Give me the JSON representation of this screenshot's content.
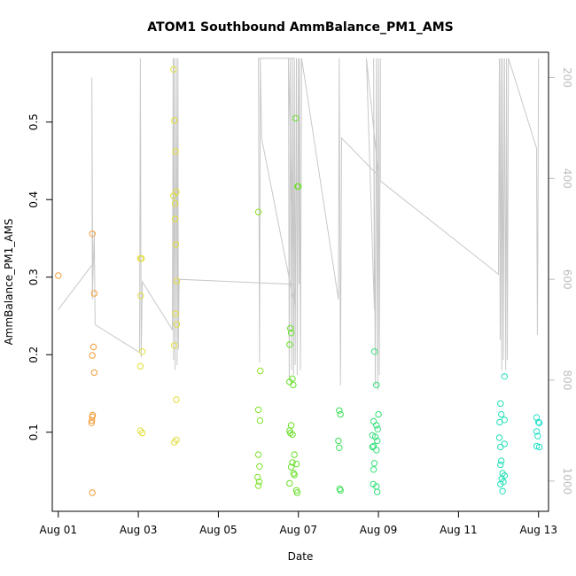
{
  "chart_data": {
    "type": "scatter",
    "title": "ATOM1 Southbound AmmBalance_PM1_AMS",
    "xlabel": "Date",
    "ylabel": "AmmBalance_PM1_AMS",
    "x_ticks": [
      "Aug 01",
      "Aug 03",
      "Aug 05",
      "Aug 07",
      "Aug 09",
      "Aug 11",
      "Aug 13"
    ],
    "x_tick_days": [
      1,
      3,
      5,
      7,
      9,
      11,
      13
    ],
    "xlim": [
      0.85,
      13.25
    ],
    "ylim": [
      -0.002,
      0.59
    ],
    "y_ticks": [
      0.1,
      0.2,
      0.3,
      0.4,
      0.5
    ],
    "y2_ticks": [
      200,
      400,
      600,
      800,
      1000
    ],
    "y2lim": [
      1060,
      150
    ],
    "y2_reversed": true,
    "colors": {
      "axis": "#000000",
      "secondary_axis": "#bdbdbd",
      "trace_line": "#c8c8c8"
    },
    "points": [
      {
        "x": 1.0,
        "y": 0.302,
        "c": "#f39c38"
      },
      {
        "x": 1.85,
        "y": 0.356,
        "c": "#f39c38"
      },
      {
        "x": 1.9,
        "y": 0.279,
        "c": "#f39c38"
      },
      {
        "x": 1.88,
        "y": 0.21,
        "c": "#f39c38"
      },
      {
        "x": 1.85,
        "y": 0.199,
        "c": "#f39c38"
      },
      {
        "x": 1.9,
        "y": 0.177,
        "c": "#f39c38"
      },
      {
        "x": 1.86,
        "y": 0.122,
        "c": "#f39c38"
      },
      {
        "x": 1.85,
        "y": 0.12,
        "c": "#f39c38"
      },
      {
        "x": 1.84,
        "y": 0.115,
        "c": "#f39c38"
      },
      {
        "x": 1.83,
        "y": 0.112,
        "c": "#f39c38"
      },
      {
        "x": 1.85,
        "y": 0.022,
        "c": "#f39c38"
      },
      {
        "x": 3.05,
        "y": 0.324,
        "c": "#e2de3a"
      },
      {
        "x": 3.08,
        "y": 0.324,
        "c": "#e2de3a"
      },
      {
        "x": 3.06,
        "y": 0.276,
        "c": "#e2de3a"
      },
      {
        "x": 3.1,
        "y": 0.204,
        "c": "#e2de3a"
      },
      {
        "x": 3.05,
        "y": 0.185,
        "c": "#e2de3a"
      },
      {
        "x": 3.05,
        "y": 0.102,
        "c": "#e2de3a"
      },
      {
        "x": 3.1,
        "y": 0.099,
        "c": "#e2de3a"
      },
      {
        "x": 3.88,
        "y": 0.568,
        "c": "#e2de3a"
      },
      {
        "x": 3.9,
        "y": 0.502,
        "c": "#e2de3a"
      },
      {
        "x": 3.93,
        "y": 0.462,
        "c": "#e2de3a"
      },
      {
        "x": 3.88,
        "y": 0.405,
        "c": "#e2de3a"
      },
      {
        "x": 3.95,
        "y": 0.41,
        "c": "#e2de3a"
      },
      {
        "x": 3.92,
        "y": 0.395,
        "c": "#e2de3a"
      },
      {
        "x": 3.92,
        "y": 0.375,
        "c": "#e2de3a"
      },
      {
        "x": 3.94,
        "y": 0.342,
        "c": "#e2de3a"
      },
      {
        "x": 3.96,
        "y": 0.295,
        "c": "#e2de3a"
      },
      {
        "x": 3.93,
        "y": 0.253,
        "c": "#e2de3a"
      },
      {
        "x": 3.96,
        "y": 0.239,
        "c": "#e2de3a"
      },
      {
        "x": 3.9,
        "y": 0.212,
        "c": "#e2de3a"
      },
      {
        "x": 3.95,
        "y": 0.142,
        "c": "#e2de3a"
      },
      {
        "x": 3.9,
        "y": 0.087,
        "c": "#e2de3a"
      },
      {
        "x": 3.95,
        "y": 0.09,
        "c": "#e2de3a"
      },
      {
        "x": 6.0,
        "y": 0.384,
        "c": "#8ee020"
      },
      {
        "x": 6.05,
        "y": 0.179,
        "c": "#8ee020"
      },
      {
        "x": 6.0,
        "y": 0.129,
        "c": "#7ee22a"
      },
      {
        "x": 6.04,
        "y": 0.115,
        "c": "#7ee22a"
      },
      {
        "x": 6.0,
        "y": 0.071,
        "c": "#7ee22a"
      },
      {
        "x": 6.03,
        "y": 0.056,
        "c": "#7ee22a"
      },
      {
        "x": 5.98,
        "y": 0.042,
        "c": "#7ee22a"
      },
      {
        "x": 6.02,
        "y": 0.036,
        "c": "#7ee22a"
      },
      {
        "x": 6.0,
        "y": 0.031,
        "c": "#7ee22a"
      },
      {
        "x": 6.93,
        "y": 0.505,
        "c": "#6be02a"
      },
      {
        "x": 6.98,
        "y": 0.417,
        "c": "#6be02a"
      },
      {
        "x": 7.0,
        "y": 0.417,
        "c": "#6be02a"
      },
      {
        "x": 6.8,
        "y": 0.234,
        "c": "#6be02a"
      },
      {
        "x": 6.82,
        "y": 0.228,
        "c": "#6be02a"
      },
      {
        "x": 6.78,
        "y": 0.213,
        "c": "#6be02a"
      },
      {
        "x": 6.85,
        "y": 0.169,
        "c": "#6be02a"
      },
      {
        "x": 6.78,
        "y": 0.165,
        "c": "#6be02a"
      },
      {
        "x": 6.87,
        "y": 0.161,
        "c": "#6be02a"
      },
      {
        "x": 6.82,
        "y": 0.109,
        "c": "#6be02a"
      },
      {
        "x": 6.78,
        "y": 0.102,
        "c": "#6be02a"
      },
      {
        "x": 6.8,
        "y": 0.099,
        "c": "#6be02a"
      },
      {
        "x": 6.85,
        "y": 0.097,
        "c": "#6be02a"
      },
      {
        "x": 6.9,
        "y": 0.071,
        "c": "#6be02a"
      },
      {
        "x": 6.85,
        "y": 0.061,
        "c": "#6be02a"
      },
      {
        "x": 6.95,
        "y": 0.059,
        "c": "#6be02a"
      },
      {
        "x": 6.82,
        "y": 0.055,
        "c": "#6be02a"
      },
      {
        "x": 6.88,
        "y": 0.047,
        "c": "#6be02a"
      },
      {
        "x": 6.9,
        "y": 0.045,
        "c": "#6be02a"
      },
      {
        "x": 6.78,
        "y": 0.034,
        "c": "#6be02a"
      },
      {
        "x": 6.95,
        "y": 0.025,
        "c": "#6be02a"
      },
      {
        "x": 6.97,
        "y": 0.022,
        "c": "#6be02a"
      },
      {
        "x": 8.02,
        "y": 0.128,
        "c": "#3fe05a"
      },
      {
        "x": 8.05,
        "y": 0.123,
        "c": "#3fe05a"
      },
      {
        "x": 8.0,
        "y": 0.089,
        "c": "#3fe05a"
      },
      {
        "x": 8.02,
        "y": 0.08,
        "c": "#3fe05a"
      },
      {
        "x": 8.03,
        "y": 0.027,
        "c": "#3fe05a"
      },
      {
        "x": 8.05,
        "y": 0.025,
        "c": "#3fe05a"
      },
      {
        "x": 8.9,
        "y": 0.204,
        "c": "#34e07a"
      },
      {
        "x": 8.95,
        "y": 0.161,
        "c": "#34e07a"
      },
      {
        "x": 9.0,
        "y": 0.123,
        "c": "#34e07a"
      },
      {
        "x": 8.88,
        "y": 0.114,
        "c": "#34e07a"
      },
      {
        "x": 8.95,
        "y": 0.109,
        "c": "#34e07a"
      },
      {
        "x": 8.98,
        "y": 0.104,
        "c": "#34e07a"
      },
      {
        "x": 8.85,
        "y": 0.096,
        "c": "#34e07a"
      },
      {
        "x": 8.92,
        "y": 0.094,
        "c": "#34e07a"
      },
      {
        "x": 8.97,
        "y": 0.089,
        "c": "#34e07a"
      },
      {
        "x": 8.88,
        "y": 0.082,
        "c": "#34e07a"
      },
      {
        "x": 8.85,
        "y": 0.081,
        "c": "#34e07a"
      },
      {
        "x": 8.95,
        "y": 0.077,
        "c": "#34e07a"
      },
      {
        "x": 8.9,
        "y": 0.06,
        "c": "#34e07a"
      },
      {
        "x": 8.88,
        "y": 0.052,
        "c": "#34e07a"
      },
      {
        "x": 8.87,
        "y": 0.033,
        "c": "#34e07a"
      },
      {
        "x": 8.95,
        "y": 0.03,
        "c": "#34e07a"
      },
      {
        "x": 8.97,
        "y": 0.023,
        "c": "#34e07a"
      },
      {
        "x": 12.15,
        "y": 0.172,
        "c": "#22e0b8"
      },
      {
        "x": 12.05,
        "y": 0.137,
        "c": "#22e0b8"
      },
      {
        "x": 12.07,
        "y": 0.123,
        "c": "#22e0b8"
      },
      {
        "x": 12.15,
        "y": 0.116,
        "c": "#22e0b8"
      },
      {
        "x": 12.03,
        "y": 0.113,
        "c": "#22e0b8"
      },
      {
        "x": 12.02,
        "y": 0.093,
        "c": "#22e0b8"
      },
      {
        "x": 12.15,
        "y": 0.085,
        "c": "#22e0b8"
      },
      {
        "x": 12.05,
        "y": 0.081,
        "c": "#22e0b8"
      },
      {
        "x": 12.07,
        "y": 0.063,
        "c": "#22e0b8"
      },
      {
        "x": 12.05,
        "y": 0.058,
        "c": "#22e0b8"
      },
      {
        "x": 12.1,
        "y": 0.047,
        "c": "#22e0b8"
      },
      {
        "x": 12.15,
        "y": 0.044,
        "c": "#22e0b8"
      },
      {
        "x": 12.08,
        "y": 0.04,
        "c": "#22e0b8"
      },
      {
        "x": 12.12,
        "y": 0.036,
        "c": "#22e0b8"
      },
      {
        "x": 12.05,
        "y": 0.033,
        "c": "#22e0b8"
      },
      {
        "x": 12.1,
        "y": 0.024,
        "c": "#22e0b8"
      },
      {
        "x": 12.95,
        "y": 0.119,
        "c": "#22e0c8"
      },
      {
        "x": 13.0,
        "y": 0.113,
        "c": "#22e0c8"
      },
      {
        "x": 13.02,
        "y": 0.112,
        "c": "#22e0c8"
      },
      {
        "x": 12.95,
        "y": 0.101,
        "c": "#22e0c8"
      },
      {
        "x": 12.98,
        "y": 0.095,
        "c": "#22e0c8"
      },
      {
        "x": 12.95,
        "y": 0.082,
        "c": "#22e0c8"
      },
      {
        "x": 13.02,
        "y": 0.081,
        "c": "#22e0c8"
      }
    ],
    "trace": [
      [
        1.0,
        660
      ],
      [
        1.86,
        570
      ],
      [
        1.84,
        200
      ],
      [
        1.85,
        640
      ],
      [
        1.9,
        505
      ],
      [
        1.92,
        690
      ],
      [
        3.03,
        745
      ],
      [
        3.05,
        162
      ],
      [
        3.07,
        755
      ],
      [
        3.1,
        605
      ],
      [
        3.85,
        700
      ],
      [
        3.87,
        162
      ],
      [
        3.88,
        760
      ],
      [
        3.9,
        162
      ],
      [
        3.92,
        780
      ],
      [
        3.95,
        162
      ],
      [
        3.97,
        770
      ],
      [
        3.99,
        162
      ],
      [
        4.0,
        740
      ],
      [
        4.02,
        600
      ],
      [
        6.88,
        610
      ],
      [
        6.9,
        162
      ],
      [
        6.0,
        162
      ],
      [
        6.03,
        765
      ],
      [
        6.05,
        162
      ],
      [
        6.08,
        320
      ],
      [
        6.9,
        650
      ],
      [
        6.75,
        162
      ],
      [
        6.77,
        800
      ],
      [
        6.8,
        162
      ],
      [
        6.83,
        780
      ],
      [
        6.85,
        162
      ],
      [
        6.88,
        790
      ],
      [
        6.9,
        162
      ],
      [
        6.92,
        770
      ],
      [
        6.95,
        162
      ],
      [
        6.97,
        790
      ],
      [
        7.0,
        162
      ],
      [
        7.02,
        610
      ],
      [
        7.03,
        162
      ],
      [
        7.05,
        780
      ],
      [
        7.08,
        162
      ],
      [
        8.0,
        640
      ],
      [
        8.02,
        162
      ],
      [
        8.05,
        810
      ],
      [
        8.08,
        320
      ],
      [
        9.0,
        395
      ],
      [
        8.7,
        162
      ],
      [
        8.9,
        660
      ],
      [
        8.88,
        162
      ],
      [
        8.92,
        810
      ],
      [
        8.95,
        162
      ],
      [
        8.98,
        820
      ],
      [
        9.0,
        162
      ],
      [
        9.02,
        790
      ],
      [
        9.05,
        162
      ],
      [
        9.05,
        405
      ],
      [
        12.0,
        590
      ],
      [
        12.02,
        162
      ],
      [
        12.04,
        720
      ],
      [
        12.06,
        162
      ],
      [
        12.08,
        780
      ],
      [
        12.1,
        162
      ],
      [
        12.12,
        760
      ],
      [
        12.15,
        162
      ],
      [
        12.18,
        780
      ],
      [
        12.2,
        162
      ],
      [
        12.22,
        760
      ],
      [
        12.25,
        162
      ],
      [
        12.95,
        340
      ],
      [
        12.97,
        710
      ],
      [
        12.98,
        600
      ],
      [
        13.0,
        162
      ]
    ]
  }
}
